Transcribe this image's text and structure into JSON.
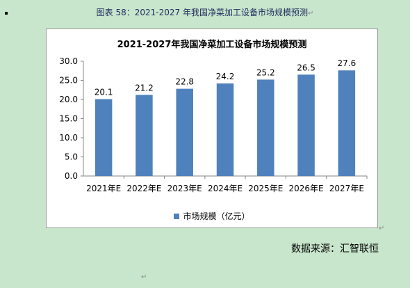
{
  "caption": "图表 58：2021-2027 年我国净菜加工设备市场规模预测",
  "para_mark": "↵",
  "source": "数据来源：汇智联恒",
  "colors": {
    "bar": "#4f81bd",
    "background": "#c8e6cc"
  },
  "chart_data": {
    "type": "bar",
    "title": "2021-2027年我国净菜加工设备市场规模预测",
    "categories": [
      "2021年E",
      "2022年E",
      "2023年E",
      "2024年E",
      "2025年E",
      "2026年E",
      "2027年E"
    ],
    "series": [
      {
        "name": "市场规模（亿元）",
        "values": [
          20.1,
          21.2,
          22.8,
          24.2,
          25.2,
          26.5,
          27.6
        ]
      }
    ],
    "value_labels": [
      "20.1",
      "21.2",
      "22.8",
      "24.2",
      "25.2",
      "26.5",
      "27.6"
    ],
    "yticks": [
      "0.0",
      "5.0",
      "10.0",
      "15.0",
      "20.0",
      "25.0",
      "30.0"
    ],
    "ylim": [
      0,
      30
    ],
    "xlabel": "",
    "ylabel": "",
    "grid": false,
    "legend_position": "bottom"
  }
}
